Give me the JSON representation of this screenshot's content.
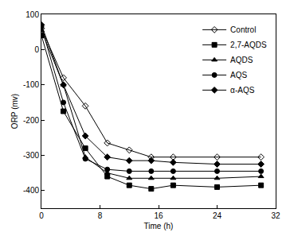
{
  "chart_data": {
    "type": "line",
    "x_label": "Time (h)",
    "y_label": "ORP (mv)",
    "xlim": [
      0,
      32
    ],
    "xticks": [
      0,
      8,
      16,
      24,
      32
    ],
    "ylim": [
      -450,
      100
    ],
    "yticks": [
      -400,
      -300,
      -200,
      -100,
      0,
      100
    ],
    "grid": false,
    "legend": "upper right",
    "x": [
      0,
      3,
      6,
      9,
      12,
      15,
      18,
      24,
      30
    ],
    "series": [
      {
        "name": "Control",
        "color": "#000000",
        "marker": "diamond-open",
        "line_style": "solid",
        "values": [
          60,
          -80,
          -160,
          -265,
          -285,
          -305,
          -305,
          -305,
          -305
        ]
      },
      {
        "name": "2,7-AQDS",
        "color": "#000000",
        "marker": "square",
        "line_style": "solid",
        "values": [
          40,
          -175,
          -280,
          -360,
          -385,
          -395,
          -385,
          -390,
          -385
        ]
      },
      {
        "name": "AQDS",
        "color": "#000000",
        "marker": "triangle-up",
        "line_style": "solid",
        "values": [
          55,
          -100,
          -305,
          -350,
          -365,
          -365,
          -365,
          -365,
          -360
        ]
      },
      {
        "name": "AQS",
        "color": "#000000",
        "marker": "circle",
        "line_style": "solid",
        "values": [
          65,
          -150,
          -310,
          -340,
          -345,
          -345,
          -345,
          -345,
          -345
        ]
      },
      {
        "name": "α-AQS",
        "color": "#000000",
        "marker": "diamond",
        "line_style": "solid",
        "values": [
          70,
          -100,
          -245,
          -305,
          -315,
          -315,
          -320,
          -325,
          -325
        ]
      }
    ]
  }
}
